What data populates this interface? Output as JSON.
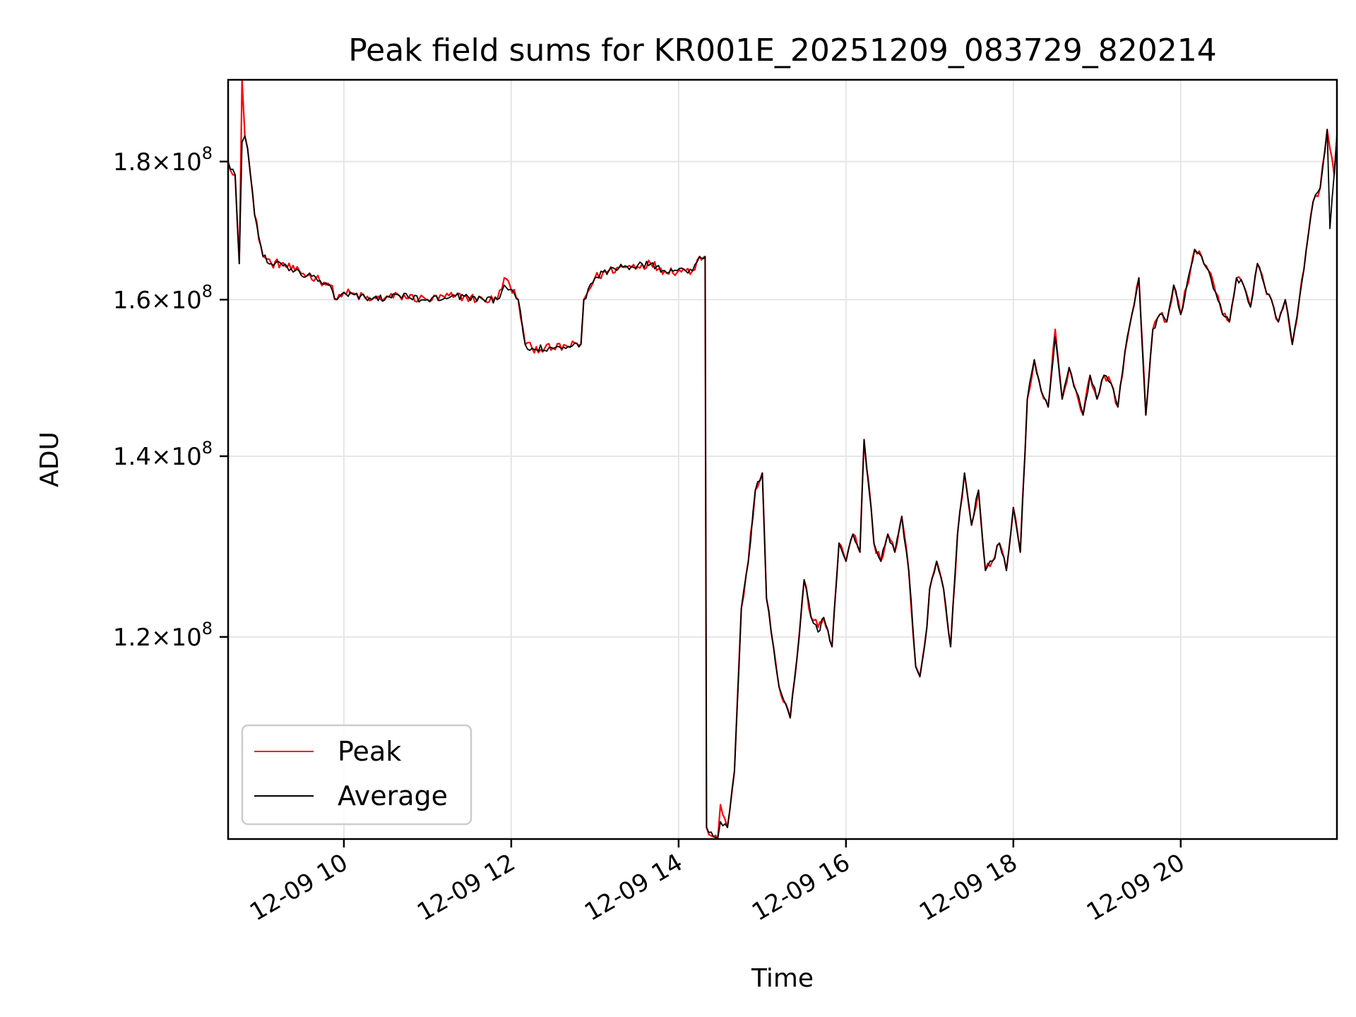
{
  "chart_data": {
    "type": "line",
    "title": "Peak field sums for KR001E_20251209_083729_820214",
    "xlabel": "Time",
    "ylabel": "ADU",
    "y_scale": "log",
    "xlim": [
      "2025-12-09 08:37",
      "2025-12-09 21:52"
    ],
    "ylim": [
      101000000,
      193000000
    ],
    "x_ticks": [
      {
        "value": "2025-12-09 10:00",
        "label": "12-09 10"
      },
      {
        "value": "2025-12-09 12:00",
        "label": "12-09 12"
      },
      {
        "value": "2025-12-09 14:00",
        "label": "12-09 14"
      },
      {
        "value": "2025-12-09 16:00",
        "label": "12-09 16"
      },
      {
        "value": "2025-12-09 18:00",
        "label": "12-09 18"
      },
      {
        "value": "2025-12-09 20:00",
        "label": "12-09 20"
      }
    ],
    "y_ticks": [
      {
        "value": 120000000,
        "mantissa": "1.2",
        "base": "10",
        "exp": "8"
      },
      {
        "value": 140000000,
        "mantissa": "1.4",
        "base": "10",
        "exp": "8"
      },
      {
        "value": 160000000,
        "mantissa": "1.6",
        "base": "10",
        "exp": "8"
      },
      {
        "value": 180000000,
        "mantissa": "1.8",
        "base": "10",
        "exp": "8"
      }
    ],
    "grid": true,
    "legend_position": "bottom-left",
    "series": [
      {
        "name": "Peak",
        "color": "#ff0000",
        "x": [
          "2025-12-09 08:37",
          "2025-12-09 08:42",
          "2025-12-09 08:45",
          "2025-12-09 08:47",
          "2025-12-09 08:49",
          "2025-12-09 08:51",
          "2025-12-09 08:53",
          "2025-12-09 08:56",
          "2025-12-09 09:02",
          "2025-12-09 09:08",
          "2025-12-09 09:15",
          "2025-12-09 09:25",
          "2025-12-09 09:40",
          "2025-12-09 09:50",
          "2025-12-09 09:55",
          "2025-12-09 10:00",
          "2025-12-09 10:20",
          "2025-12-09 10:40",
          "2025-12-09 11:00",
          "2025-12-09 11:20",
          "2025-12-09 11:40",
          "2025-12-09 11:50",
          "2025-12-09 11:55",
          "2025-12-09 12:05",
          "2025-12-09 12:10",
          "2025-12-09 12:15",
          "2025-12-09 12:30",
          "2025-12-09 12:50",
          "2025-12-09 12:52",
          "2025-12-09 13:00",
          "2025-12-09 13:10",
          "2025-12-09 13:20",
          "2025-12-09 13:40",
          "2025-12-09 13:50",
          "2025-12-09 14:05",
          "2025-12-09 14:10",
          "2025-12-09 14:15",
          "2025-12-09 14:19",
          "2025-12-09 14:20",
          "2025-12-09 14:25",
          "2025-12-09 14:28",
          "2025-12-09 14:30",
          "2025-12-09 14:35",
          "2025-12-09 14:40",
          "2025-12-09 14:45",
          "2025-12-09 14:50",
          "2025-12-09 14:55",
          "2025-12-09 15:00",
          "2025-12-09 15:03",
          "2025-12-09 15:08",
          "2025-12-09 15:12",
          "2025-12-09 15:20",
          "2025-12-09 15:25",
          "2025-12-09 15:30",
          "2025-12-09 15:35",
          "2025-12-09 15:40",
          "2025-12-09 15:44",
          "2025-12-09 15:50",
          "2025-12-09 15:55",
          "2025-12-09 16:00",
          "2025-12-09 16:05",
          "2025-12-09 16:10",
          "2025-12-09 16:13",
          "2025-12-09 16:18",
          "2025-12-09 16:20",
          "2025-12-09 16:25",
          "2025-12-09 16:30",
          "2025-12-09 16:35",
          "2025-12-09 16:40",
          "2025-12-09 16:45",
          "2025-12-09 16:50",
          "2025-12-09 16:53",
          "2025-12-09 16:58",
          "2025-12-09 17:00",
          "2025-12-09 17:05",
          "2025-12-09 17:10",
          "2025-12-09 17:15",
          "2025-12-09 17:20",
          "2025-12-09 17:25",
          "2025-12-09 17:30",
          "2025-12-09 17:35",
          "2025-12-09 17:40",
          "2025-12-09 17:45",
          "2025-12-09 17:50",
          "2025-12-09 17:55",
          "2025-12-09 18:00",
          "2025-12-09 18:05",
          "2025-12-09 18:10",
          "2025-12-09 18:15",
          "2025-12-09 18:20",
          "2025-12-09 18:25",
          "2025-12-09 18:30",
          "2025-12-09 18:35",
          "2025-12-09 18:40",
          "2025-12-09 18:45",
          "2025-12-09 18:50",
          "2025-12-09 18:55",
          "2025-12-09 19:00",
          "2025-12-09 19:05",
          "2025-12-09 19:10",
          "2025-12-09 19:15",
          "2025-12-09 19:20",
          "2025-12-09 19:25",
          "2025-12-09 19:30",
          "2025-12-09 19:35",
          "2025-12-09 19:40",
          "2025-12-09 19:45",
          "2025-12-09 19:50",
          "2025-12-09 19:55",
          "2025-12-09 20:00",
          "2025-12-09 20:10",
          "2025-12-09 20:15",
          "2025-12-09 20:20",
          "2025-12-09 20:25",
          "2025-12-09 20:30",
          "2025-12-09 20:35",
          "2025-12-09 20:40",
          "2025-12-09 20:45",
          "2025-12-09 20:50",
          "2025-12-09 20:55",
          "2025-12-09 21:00",
          "2025-12-09 21:05",
          "2025-12-09 21:10",
          "2025-12-09 21:15",
          "2025-12-09 21:20",
          "2025-12-09 21:25",
          "2025-12-09 21:30",
          "2025-12-09 21:35",
          "2025-12-09 21:40",
          "2025-12-09 21:45",
          "2025-12-09 21:47",
          "2025-12-09 21:50",
          "2025-12-09 21:52"
        ],
        "y": [
          180000000,
          178000000,
          165000000,
          193000000,
          184000000,
          182000000,
          178000000,
          172000000,
          166000000,
          165000000,
          165000000,
          164000000,
          163000000,
          162000000,
          160000000,
          161000000,
          160000000,
          160500000,
          160000000,
          160500000,
          160000000,
          160000000,
          163000000,
          160000000,
          154000000,
          153500000,
          153500000,
          154000000,
          160000000,
          163000000,
          164000000,
          164500000,
          165000000,
          164000000,
          164000000,
          164000000,
          166000000,
          166000000,
          102000000,
          101200000,
          101000000,
          104000000,
          102000000,
          107000000,
          123000000,
          128000000,
          136000000,
          138000000,
          124000000,
          119000000,
          115000000,
          112000000,
          118000000,
          126000000,
          122000000,
          121000000,
          122000000,
          119000000,
          130000000,
          128000000,
          131000000,
          129000000,
          142000000,
          134000000,
          130000000,
          128000000,
          131000000,
          129000000,
          133000000,
          127000000,
          117000000,
          116000000,
          121000000,
          125000000,
          128000000,
          125000000,
          119000000,
          131000000,
          138000000,
          132000000,
          136000000,
          127000000,
          128000000,
          130000000,
          127000000,
          134000000,
          129000000,
          147000000,
          152000000,
          148000000,
          146000000,
          156000000,
          147000000,
          151000000,
          148000000,
          145000000,
          150000000,
          147000000,
          150000000,
          149000000,
          146000000,
          153000000,
          158000000,
          163000000,
          145000000,
          156000000,
          158000000,
          157000000,
          162000000,
          158000000,
          167000000,
          166000000,
          164000000,
          161000000,
          158000000,
          157000000,
          163000000,
          162000000,
          159000000,
          165000000,
          162000000,
          160000000,
          157000000,
          160000000,
          154000000,
          160000000,
          167000000,
          174000000,
          176000000,
          185000000,
          182000000,
          178000000,
          184000000
        ],
        "noise": 0.004
      },
      {
        "name": "Average",
        "color": "#000000",
        "x": [
          "2025-12-09 08:37",
          "2025-12-09 08:42",
          "2025-12-09 08:45",
          "2025-12-09 08:47",
          "2025-12-09 08:49",
          "2025-12-09 08:51",
          "2025-12-09 08:53",
          "2025-12-09 08:56",
          "2025-12-09 09:02",
          "2025-12-09 09:08",
          "2025-12-09 09:15",
          "2025-12-09 09:25",
          "2025-12-09 09:40",
          "2025-12-09 09:50",
          "2025-12-09 09:55",
          "2025-12-09 10:00",
          "2025-12-09 10:20",
          "2025-12-09 10:40",
          "2025-12-09 11:00",
          "2025-12-09 11:20",
          "2025-12-09 11:40",
          "2025-12-09 11:50",
          "2025-12-09 11:55",
          "2025-12-09 12:05",
          "2025-12-09 12:10",
          "2025-12-09 12:15",
          "2025-12-09 12:30",
          "2025-12-09 12:50",
          "2025-12-09 12:52",
          "2025-12-09 13:00",
          "2025-12-09 13:10",
          "2025-12-09 13:20",
          "2025-12-09 13:40",
          "2025-12-09 13:50",
          "2025-12-09 14:05",
          "2025-12-09 14:10",
          "2025-12-09 14:15",
          "2025-12-09 14:19",
          "2025-12-09 14:20",
          "2025-12-09 14:25",
          "2025-12-09 14:28",
          "2025-12-09 14:30",
          "2025-12-09 14:35",
          "2025-12-09 14:40",
          "2025-12-09 14:45",
          "2025-12-09 14:50",
          "2025-12-09 14:55",
          "2025-12-09 15:00",
          "2025-12-09 15:03",
          "2025-12-09 15:08",
          "2025-12-09 15:12",
          "2025-12-09 15:20",
          "2025-12-09 15:25",
          "2025-12-09 15:30",
          "2025-12-09 15:35",
          "2025-12-09 15:40",
          "2025-12-09 15:44",
          "2025-12-09 15:50",
          "2025-12-09 15:55",
          "2025-12-09 16:00",
          "2025-12-09 16:05",
          "2025-12-09 16:10",
          "2025-12-09 16:13",
          "2025-12-09 16:18",
          "2025-12-09 16:20",
          "2025-12-09 16:25",
          "2025-12-09 16:30",
          "2025-12-09 16:35",
          "2025-12-09 16:40",
          "2025-12-09 16:45",
          "2025-12-09 16:50",
          "2025-12-09 16:53",
          "2025-12-09 16:58",
          "2025-12-09 17:00",
          "2025-12-09 17:05",
          "2025-12-09 17:10",
          "2025-12-09 17:15",
          "2025-12-09 17:20",
          "2025-12-09 17:25",
          "2025-12-09 17:30",
          "2025-12-09 17:35",
          "2025-12-09 17:40",
          "2025-12-09 17:45",
          "2025-12-09 17:50",
          "2025-12-09 17:55",
          "2025-12-09 18:00",
          "2025-12-09 18:05",
          "2025-12-09 18:10",
          "2025-12-09 18:15",
          "2025-12-09 18:20",
          "2025-12-09 18:25",
          "2025-12-09 18:30",
          "2025-12-09 18:35",
          "2025-12-09 18:40",
          "2025-12-09 18:45",
          "2025-12-09 18:50",
          "2025-12-09 18:55",
          "2025-12-09 19:00",
          "2025-12-09 19:05",
          "2025-12-09 19:10",
          "2025-12-09 19:15",
          "2025-12-09 19:20",
          "2025-12-09 19:25",
          "2025-12-09 19:30",
          "2025-12-09 19:35",
          "2025-12-09 19:40",
          "2025-12-09 19:45",
          "2025-12-09 19:50",
          "2025-12-09 19:55",
          "2025-12-09 20:00",
          "2025-12-09 20:10",
          "2025-12-09 20:15",
          "2025-12-09 20:20",
          "2025-12-09 20:25",
          "2025-12-09 20:30",
          "2025-12-09 20:35",
          "2025-12-09 20:40",
          "2025-12-09 20:45",
          "2025-12-09 20:50",
          "2025-12-09 20:55",
          "2025-12-09 21:00",
          "2025-12-09 21:05",
          "2025-12-09 21:10",
          "2025-12-09 21:15",
          "2025-12-09 21:20",
          "2025-12-09 21:25",
          "2025-12-09 21:30",
          "2025-12-09 21:35",
          "2025-12-09 21:40",
          "2025-12-09 21:45",
          "2025-12-09 21:47",
          "2025-12-09 21:50",
          "2025-12-09 21:52"
        ],
        "y": [
          180000000,
          178000000,
          165000000,
          183000000,
          184000000,
          182000000,
          178000000,
          172000000,
          166000000,
          165000000,
          165000000,
          164000000,
          163000000,
          162000000,
          160000000,
          161000000,
          160000000,
          160500000,
          160000000,
          160500000,
          160000000,
          160000000,
          162000000,
          160000000,
          154000000,
          153500000,
          153500000,
          154000000,
          160000000,
          163000000,
          164000000,
          164500000,
          165000000,
          164000000,
          164000000,
          164000000,
          166000000,
          166000000,
          102000000,
          101200000,
          101000000,
          102500000,
          102000000,
          107000000,
          123000000,
          128000000,
          136000000,
          138000000,
          124000000,
          119000000,
          115000000,
          112000000,
          118000000,
          126000000,
          122000000,
          120500000,
          122000000,
          119000000,
          130000000,
          128000000,
          131000000,
          129000000,
          142000000,
          134000000,
          130000000,
          128000000,
          131000000,
          129000000,
          133000000,
          127000000,
          117000000,
          116000000,
          121000000,
          125000000,
          128000000,
          125000000,
          119000000,
          131000000,
          138000000,
          132000000,
          136000000,
          127000000,
          128000000,
          130000000,
          127000000,
          134000000,
          129000000,
          147000000,
          152000000,
          148000000,
          146000000,
          155000000,
          147000000,
          151000000,
          148000000,
          145000000,
          150000000,
          147000000,
          150000000,
          149000000,
          146000000,
          153000000,
          158000000,
          163000000,
          145000000,
          156000000,
          158000000,
          157000000,
          162000000,
          158000000,
          167000000,
          166000000,
          164000000,
          161000000,
          158000000,
          157000000,
          163000000,
          162000000,
          159000000,
          165000000,
          162000000,
          160000000,
          157000000,
          160000000,
          154000000,
          160000000,
          167000000,
          174000000,
          176000000,
          185000000,
          170000000,
          178000000,
          184000000
        ],
        "noise": 0.003
      }
    ]
  }
}
